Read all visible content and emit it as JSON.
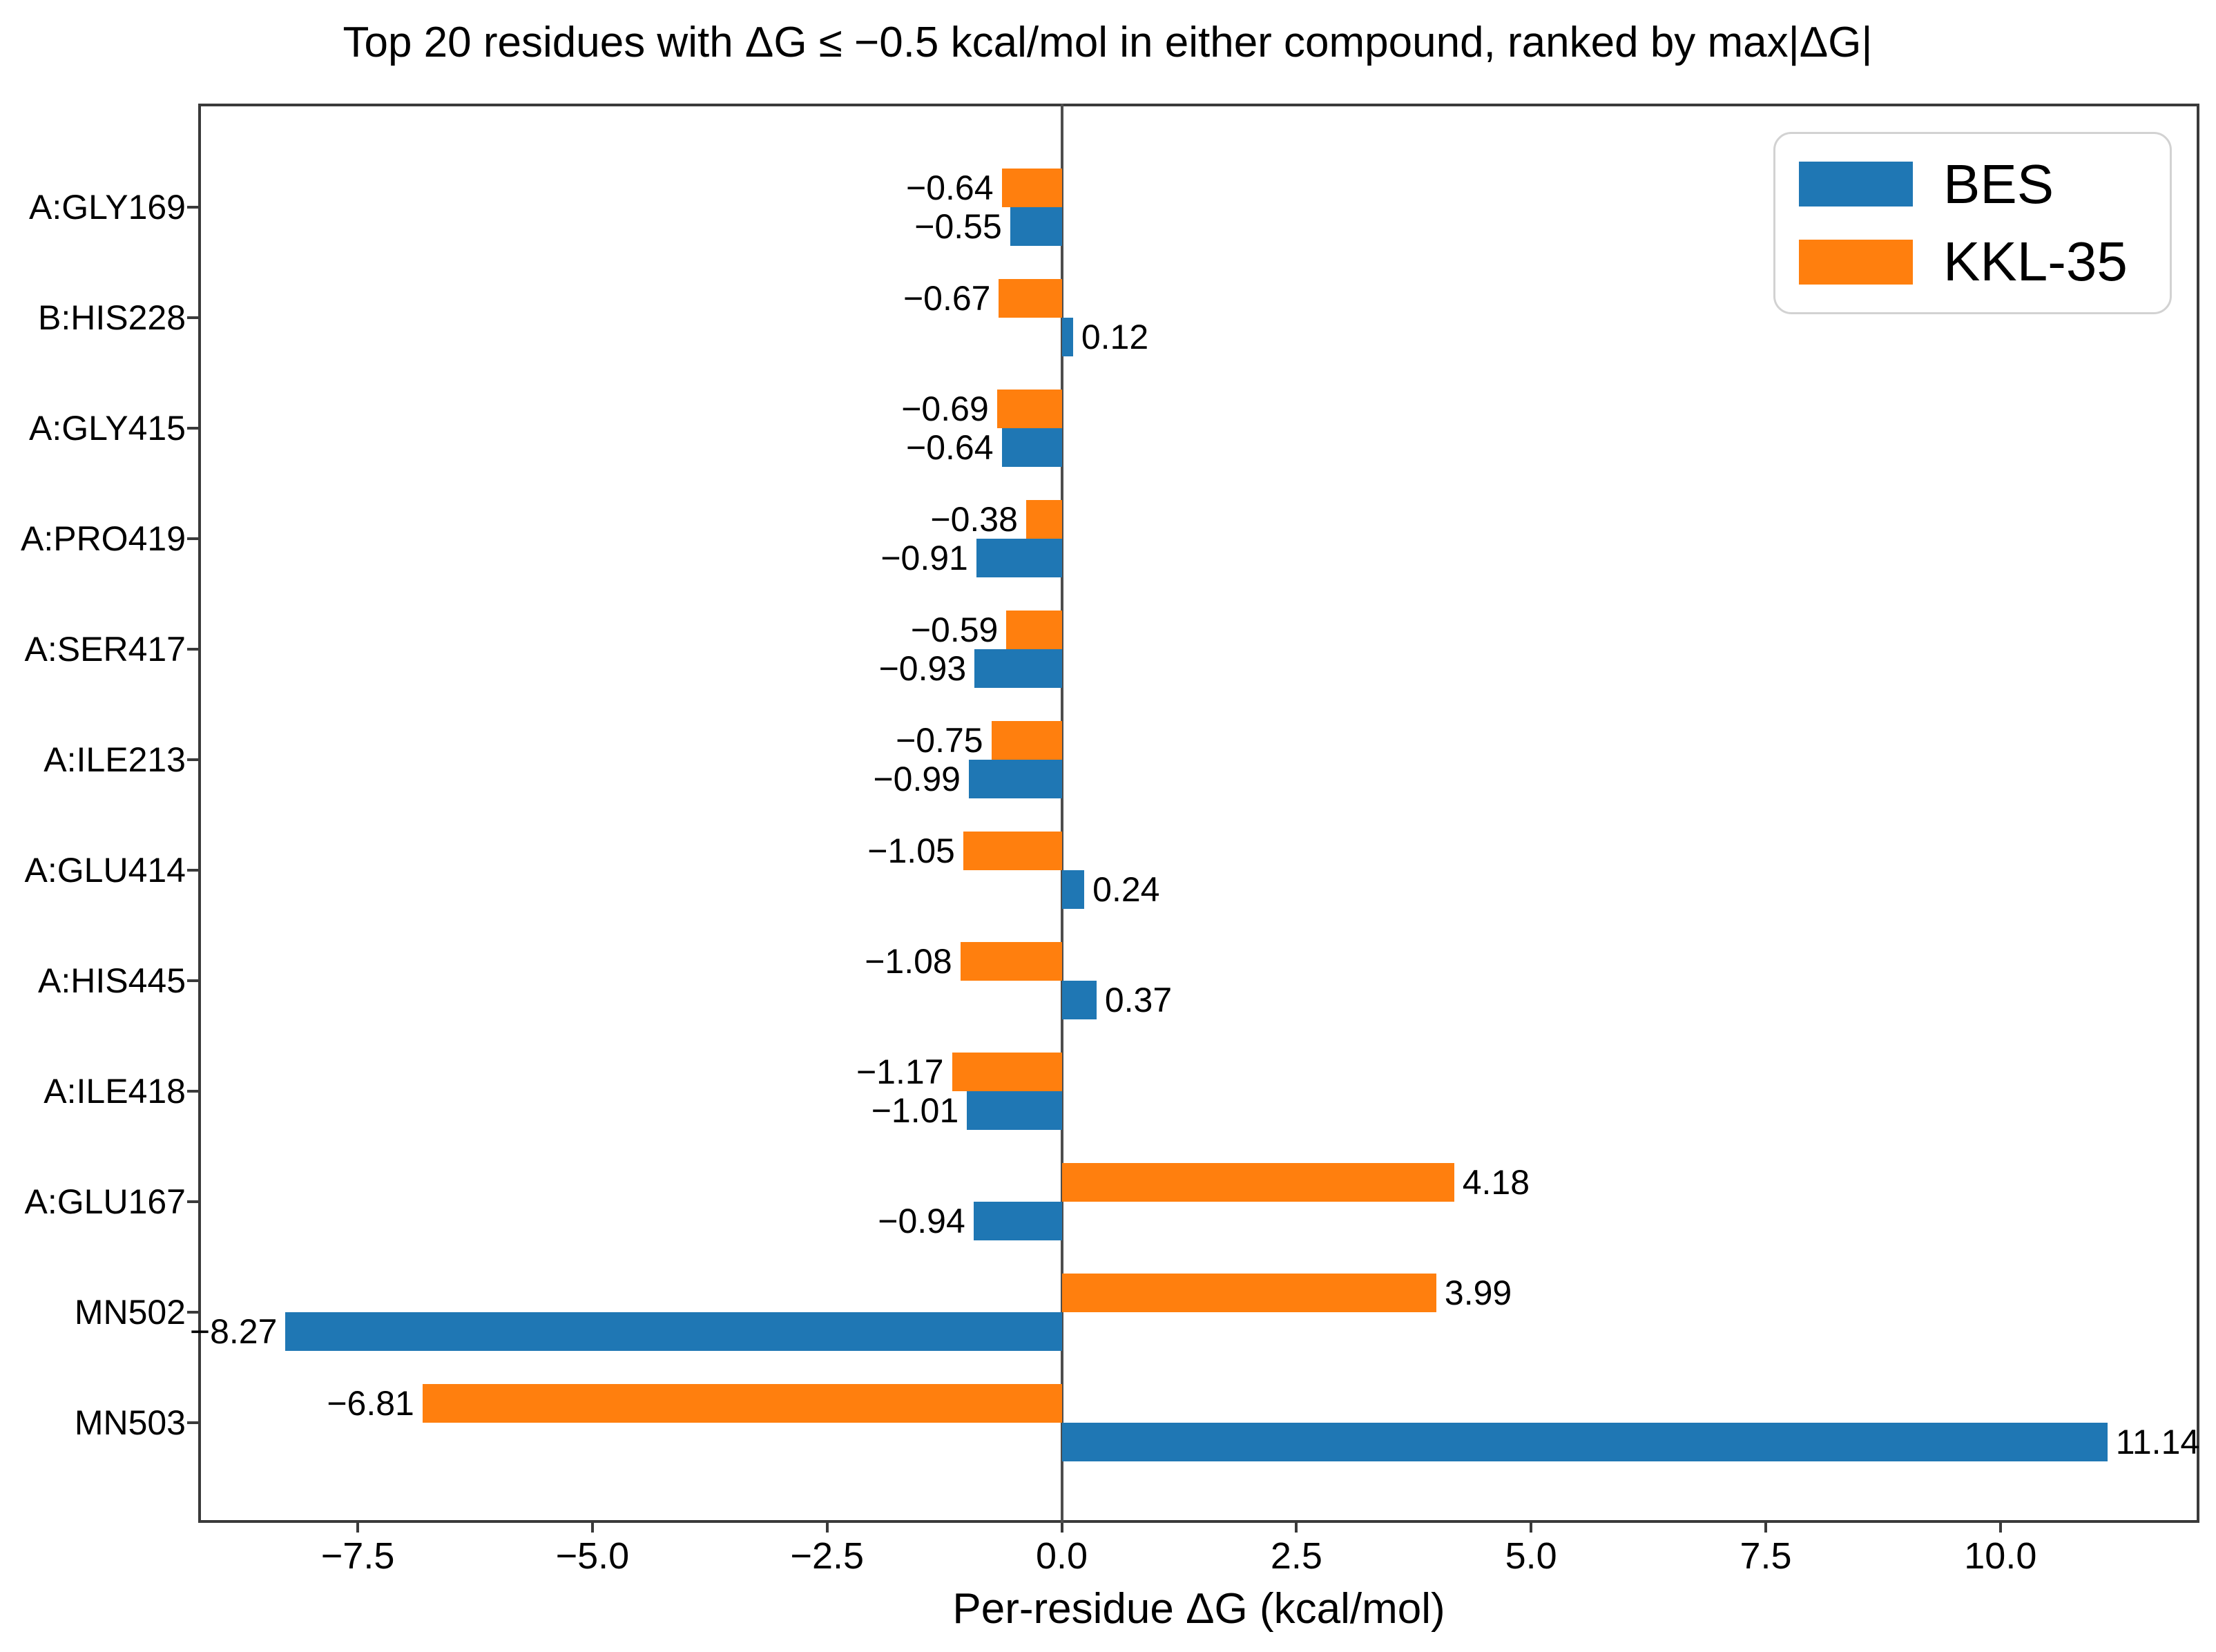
{
  "chart_data": {
    "type": "bar",
    "orientation": "horizontal",
    "title": "Top 20 residues with ΔG ≤ −0.5 kcal/mol in either compound, ranked by max|ΔG|",
    "xlabel": "Per-residue ΔG (kcal/mol)",
    "categories": [
      "A:GLY169",
      "B:HIS228",
      "A:GLY415",
      "A:PRO419",
      "A:SER417",
      "A:ILE213",
      "A:GLU414",
      "A:HIS445",
      "A:ILE418",
      "A:GLU167",
      "MN502",
      "MN503"
    ],
    "series": [
      {
        "name": "BES",
        "color": "#1f77b4",
        "values": [
          -0.55,
          0.12,
          -0.64,
          -0.91,
          -0.93,
          -0.99,
          0.24,
          0.37,
          -1.01,
          -0.94,
          -8.27,
          11.14
        ],
        "value_labels": [
          "−0.55",
          "0.12",
          "−0.64",
          "−0.91",
          "−0.93",
          "−0.99",
          "0.24",
          "0.37",
          "−1.01",
          "−0.94",
          "−8.27",
          "11.14"
        ]
      },
      {
        "name": "KKL-35",
        "color": "#ff7f0e",
        "values": [
          -0.64,
          -0.67,
          -0.69,
          -0.38,
          -0.59,
          -0.75,
          -1.05,
          -1.08,
          -1.17,
          4.18,
          3.99,
          -6.81
        ],
        "value_labels": [
          "−0.64",
          "−0.67",
          "−0.69",
          "−0.38",
          "−0.59",
          "−0.75",
          "−1.05",
          "−1.08",
          "−1.17",
          "4.18",
          "3.99",
          "−6.81"
        ]
      }
    ],
    "bar_order_within_group_top_to_bottom": [
      "KKL-35",
      "BES"
    ],
    "x_ticks": {
      "values": [
        -7.5,
        -5.0,
        -2.5,
        0.0,
        2.5,
        5.0,
        7.5,
        10.0
      ],
      "labels": [
        "−7.5",
        "−5.0",
        "−2.5",
        "0.0",
        "2.5",
        "5.0",
        "7.5",
        "10.0"
      ]
    },
    "xlim": [
      -9.2,
      12.12
    ],
    "grid": false,
    "zero_line": true,
    "legend": {
      "position": "upper right",
      "entries": [
        "BES",
        "KKL-35"
      ]
    }
  }
}
